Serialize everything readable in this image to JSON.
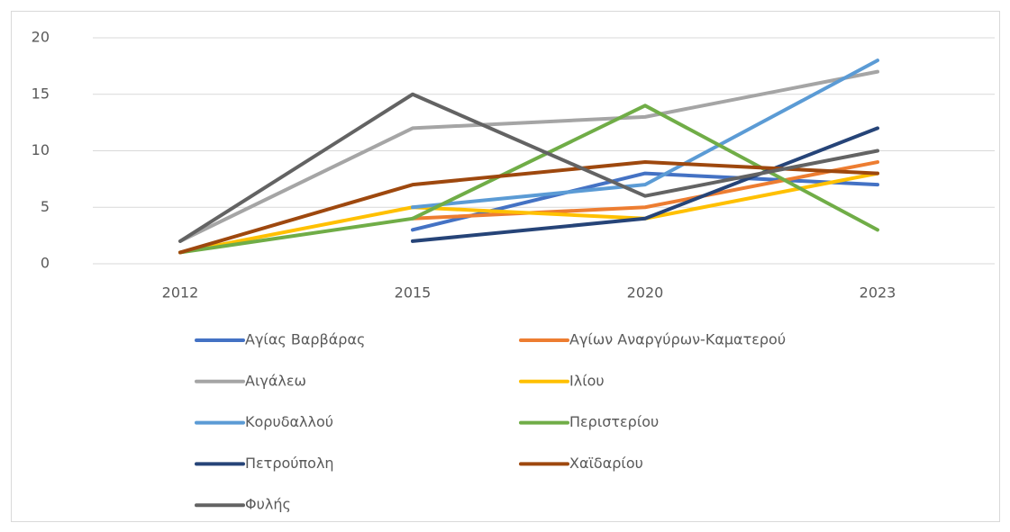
{
  "chart_data": {
    "type": "line",
    "categories": [
      "2012",
      "2015",
      "2020",
      "2023"
    ],
    "series": [
      {
        "name": "Αγίας Βαρβάρας",
        "color": "#4472c4",
        "values": [
          null,
          3,
          8,
          7
        ]
      },
      {
        "name": "Αγίων Αναργύρων-Καματερού",
        "color": "#ed7d31",
        "values": [
          null,
          4,
          5,
          9
        ]
      },
      {
        "name": "Αιγάλεω",
        "color": "#a5a5a5",
        "values": [
          2,
          12,
          13,
          17
        ]
      },
      {
        "name": "Ιλίου",
        "color": "#ffc000",
        "values": [
          1,
          5,
          4,
          8
        ]
      },
      {
        "name": "Κορυδαλλού",
        "color": "#5b9bd5",
        "values": [
          null,
          5,
          7,
          18
        ]
      },
      {
        "name": "Περιστερίου",
        "color": "#70ad47",
        "values": [
          1,
          4,
          14,
          3
        ]
      },
      {
        "name": "Πετρούπολη",
        "color": "#264478",
        "values": [
          null,
          2,
          4,
          12
        ]
      },
      {
        "name": "Χαϊδαρίου",
        "color": "#9e480e",
        "values": [
          1,
          7,
          9,
          8
        ]
      },
      {
        "name": "Φυλής",
        "color": "#636363",
        "values": [
          2,
          15,
          6,
          10
        ]
      }
    ],
    "ylim": [
      0,
      20
    ],
    "yticks": [
      0,
      5,
      10,
      15,
      20
    ],
    "grid": true,
    "legend": "bottom"
  }
}
